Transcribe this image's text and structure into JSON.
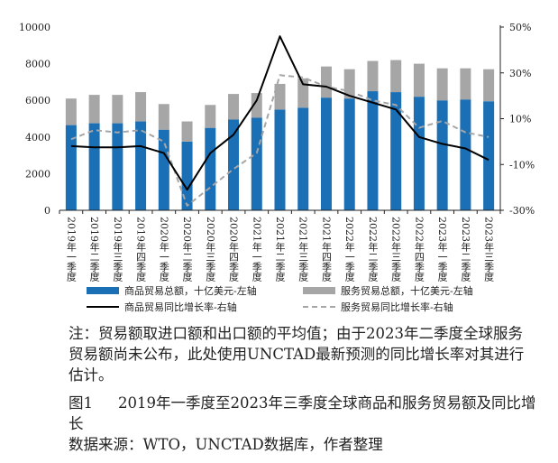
{
  "chart_data": {
    "type": "bar",
    "categories": [
      "2019年一季度",
      "2019年二季度",
      "2019年三季度",
      "2019年四季度",
      "2020年一季度",
      "2020年二季度",
      "2020年三季度",
      "2020年四季度",
      "2021年一季度",
      "2021年二季度",
      "2021年三季度",
      "2021年四季度",
      "2022年一季度",
      "2022年二季度",
      "2022年三季度",
      "2022年四季度",
      "2023年一季度",
      "2023年二季度",
      "2023年三季度"
    ],
    "series": [
      {
        "name": "商品贸易总额，十亿美元-左轴",
        "kind": "bar",
        "axis": "left",
        "color": "#1a6fb5",
        "values": [
          4650,
          4750,
          4750,
          4850,
          4400,
          3750,
          4500,
          4950,
          5050,
          5500,
          5600,
          6150,
          6100,
          6500,
          6450,
          6200,
          6000,
          6050,
          5950
        ]
      },
      {
        "name": "服务贸易总额，十亿美元-左轴",
        "kind": "bar",
        "axis": "left",
        "color": "#a6a6a6",
        "values": [
          1450,
          1550,
          1550,
          1600,
          1400,
          1100,
          1250,
          1400,
          1350,
          1400,
          1600,
          1700,
          1600,
          1650,
          1750,
          1800,
          1750,
          1700,
          1750
        ]
      },
      {
        "name": "商品贸易同比增长率-右轴",
        "kind": "line",
        "axis": "right",
        "color": "#000000",
        "dash": false,
        "values": [
          -2,
          -2.5,
          -2.5,
          -2,
          -5,
          -21,
          -5,
          3,
          18,
          46,
          25,
          24,
          20,
          17,
          14,
          2,
          -1,
          -3,
          -8
        ]
      },
      {
        "name": "服务贸易同比增长率-右轴",
        "kind": "line",
        "axis": "right",
        "color": "#a6a6a6",
        "dash": true,
        "values": [
          1,
          5,
          4,
          5,
          0,
          -28,
          -20,
          -12,
          -5,
          29,
          28,
          24,
          22,
          18,
          16,
          6,
          9,
          4,
          2
        ]
      }
    ],
    "y_left": {
      "min": 0,
      "max": 10000,
      "ticks": [
        "0",
        "2000",
        "4000",
        "6000",
        "8000",
        "10000"
      ]
    },
    "y_right": {
      "min": -30,
      "max": 50,
      "ticks": [
        "-30%",
        "-10%",
        "10%",
        "30%",
        "50%"
      ]
    },
    "legend_placement": "bottom",
    "grid": false
  },
  "note": "注：贸易额取进口额和出口额的平均值；由于2023年二季度全球服务贸易额尚未公布，此处使用UNCTAD最新预测的同比增长率对其进行估计。",
  "figure_label": "图1",
  "figure_title": "2019年一季度至2023年三季度全球商品和服务贸易额及同比增长",
  "source": "数据来源：WTO，UNCTAD数据库，作者整理"
}
